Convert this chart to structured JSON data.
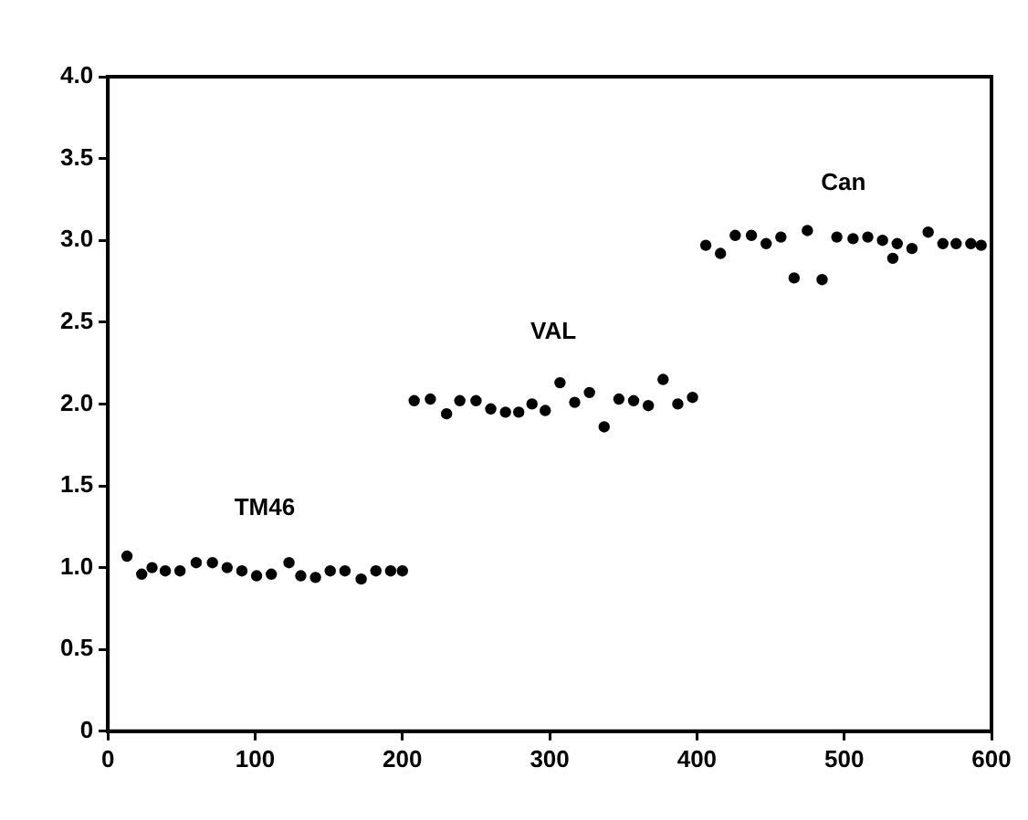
{
  "chart_data": {
    "type": "scatter",
    "marker": "circle",
    "grid": false,
    "legend": false,
    "xlim": [
      0,
      600
    ],
    "xticks": [
      0,
      100,
      200,
      300,
      400,
      500,
      600
    ],
    "ylim": [
      0,
      4
    ],
    "yticks": [
      0,
      {
        "value": 0.5,
        "label": "0.5"
      },
      {
        "value": 1,
        "label": "1.0"
      },
      {
        "value": 1.5,
        "label": "1.5"
      },
      {
        "value": 2,
        "label": "2.0"
      },
      {
        "value": 2.5,
        "label": "2.5"
      },
      {
        "value": 3,
        "label": "3.0"
      },
      {
        "value": 3.5,
        "label": "3.5"
      },
      {
        "value": 4,
        "label": "4.0"
      }
    ],
    "series": [
      {
        "name": "TM46",
        "color": "#000000",
        "x": [
          13,
          23,
          30,
          39,
          49,
          60,
          71,
          81,
          91,
          101,
          111,
          123,
          131,
          141,
          151,
          161,
          172,
          182,
          192,
          200
        ],
        "values": [
          1.07,
          0.96,
          1.0,
          0.98,
          0.98,
          1.03,
          1.03,
          1.0,
          0.98,
          0.95,
          0.96,
          1.03,
          0.95,
          0.94,
          0.98,
          0.98,
          0.93,
          0.98,
          0.98,
          0.98
        ]
      },
      {
        "name": "VAL",
        "color": "#000000",
        "x": [
          208,
          219,
          230,
          239,
          250,
          260,
          270,
          279,
          288,
          297,
          307,
          317,
          327,
          337,
          347,
          357,
          367,
          377,
          387,
          397
        ],
        "values": [
          2.02,
          2.03,
          1.94,
          2.02,
          2.02,
          1.97,
          1.95,
          1.95,
          2.0,
          1.96,
          2.13,
          2.01,
          2.07,
          1.86,
          2.03,
          2.02,
          1.99,
          2.15,
          2.0,
          2.04
        ]
      },
      {
        "name": "Can",
        "color": "#000000",
        "x": [
          406,
          416,
          426,
          437,
          447,
          457,
          466,
          475,
          485,
          495,
          506,
          516,
          526,
          533,
          536,
          546,
          557,
          567,
          576,
          586,
          593
        ],
        "values": [
          2.97,
          2.92,
          3.03,
          3.03,
          2.98,
          3.02,
          2.77,
          3.06,
          2.76,
          3.02,
          3.01,
          3.02,
          3.0,
          2.89,
          2.98,
          2.95,
          3.05,
          2.98,
          2.98,
          2.98,
          2.97
        ]
      }
    ]
  }
}
